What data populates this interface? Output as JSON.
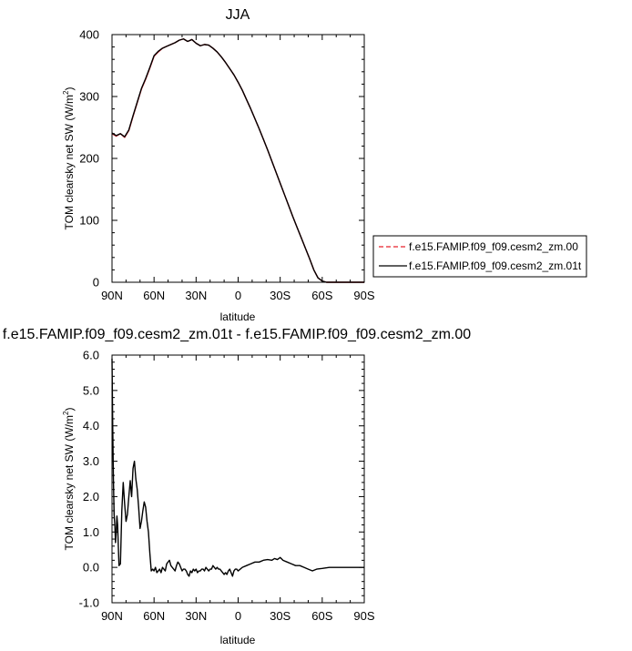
{
  "chart_data": [
    {
      "type": "line",
      "title": "JJA",
      "xlabel": "latitude",
      "ylabel": "TOM clearsky net SW (W/m",
      "ylabel_sup": "2",
      "ylabel_close": ")",
      "xlim": [
        90,
        -90
      ],
      "ylim": [
        0,
        400
      ],
      "x_ticks": [
        90,
        60,
        30,
        0,
        -30,
        -60,
        -90
      ],
      "x_tick_labels": [
        "90N",
        "60N",
        "30N",
        "0",
        "30S",
        "60S",
        "90S"
      ],
      "y_ticks": [
        0,
        100,
        200,
        300,
        400
      ],
      "y_tick_labels": [
        "0",
        "100",
        "200",
        "300",
        "400"
      ],
      "legend": {
        "placement": "right",
        "entries": [
          {
            "label": "f.e15.FAMIP.f09_f09.cesm2_zm.00",
            "color": "#e8202a",
            "dash": "dashed"
          },
          {
            "label": "f.e15.FAMIP.f09_f09.cesm2_zm.01t",
            "color": "#000000",
            "dash": "solid"
          }
        ]
      },
      "x": [
        90,
        87,
        84,
        81,
        78,
        75,
        72,
        69,
        66,
        63,
        60,
        57,
        54,
        51,
        48,
        45,
        42,
        39,
        36,
        33,
        30,
        27,
        24,
        21,
        18,
        15,
        12,
        9,
        6,
        3,
        0,
        -3,
        -6,
        -9,
        -12,
        -15,
        -18,
        -21,
        -24,
        -27,
        -30,
        -33,
        -36,
        -39,
        -42,
        -45,
        -48,
        -51,
        -54,
        -57,
        -60,
        -63,
        -66,
        -69,
        -72,
        -75,
        -78,
        -81,
        -84,
        -87,
        -90
      ],
      "series": [
        {
          "name": "f.e15.FAMIP.f09_f09.cesm2_zm.00",
          "color": "#e8202a",
          "values": [
            240,
            236,
            240,
            234,
            245,
            268,
            290,
            312,
            328,
            346,
            365,
            372,
            378,
            381,
            384,
            387,
            391,
            393,
            389,
            392,
            386,
            382,
            384,
            383,
            378,
            372,
            364,
            355,
            345,
            335,
            323,
            310,
            295,
            280,
            264,
            248,
            231,
            214,
            196,
            178,
            160,
            142,
            124,
            106,
            89,
            72,
            55,
            38,
            20,
            7,
            2,
            0,
            0,
            0,
            0,
            0,
            0,
            0,
            0,
            0,
            0
          ]
        },
        {
          "name": "f.e15.FAMIP.f09_f09.cesm2_zm.01t",
          "color": "#000000",
          "values": [
            241,
            237,
            240,
            235,
            246,
            269,
            291,
            313,
            329,
            347,
            366,
            373,
            378,
            381,
            384,
            387,
            391,
            393,
            389,
            392,
            386,
            382,
            384,
            383,
            378,
            372,
            364,
            355,
            345,
            335,
            323,
            310,
            295,
            280,
            264,
            248,
            231,
            214,
            196,
            178,
            160,
            142,
            124,
            106,
            89,
            72,
            55,
            38,
            20,
            7,
            2,
            0,
            0,
            0,
            0,
            0,
            0,
            0,
            0,
            0,
            0
          ]
        }
      ]
    },
    {
      "type": "line",
      "title": "f.e15.FAMIP.f09_f09.cesm2_zm.01t - f.e15.FAMIP.f09_f09.cesm2_zm.00",
      "xlabel": "latitude",
      "ylabel": "TOM clearsky net SW (W/m",
      "ylabel_sup": "2",
      "ylabel_close": ")",
      "xlim": [
        90,
        -90
      ],
      "ylim": [
        -1.0,
        6.0
      ],
      "x_ticks": [
        90,
        60,
        30,
        0,
        -30,
        -60,
        -90
      ],
      "x_tick_labels": [
        "90N",
        "60N",
        "30N",
        "0",
        "30S",
        "60S",
        "90S"
      ],
      "y_ticks": [
        -1.0,
        0.0,
        1.0,
        2.0,
        3.0,
        4.0,
        5.0,
        6.0
      ],
      "y_tick_labels": [
        "-1.0",
        "0.0",
        "1.0",
        "2.0",
        "3.0",
        "4.0",
        "5.0",
        "6.0"
      ],
      "series": [
        {
          "color": "#000000",
          "x": [
            90,
            89.5,
            89,
            88.5,
            88,
            87.5,
            87,
            86.5,
            86,
            85.5,
            85,
            84,
            83,
            82,
            81,
            80,
            79,
            78,
            77,
            76,
            75,
            74,
            73,
            72,
            71,
            70,
            69,
            68,
            67,
            66,
            65,
            64,
            63,
            62,
            61,
            60,
            59,
            58,
            57,
            56,
            55,
            54,
            53,
            52,
            51,
            50,
            49,
            48,
            47,
            46,
            45,
            44,
            43,
            42,
            41,
            40,
            39,
            38,
            37,
            36,
            35,
            34,
            33,
            32,
            31,
            30,
            29,
            28,
            27,
            26,
            25,
            24,
            23,
            22,
            21,
            20,
            19,
            18,
            17,
            16,
            15,
            14,
            13,
            12,
            11,
            10,
            9,
            8,
            7,
            6,
            5,
            4,
            3,
            2,
            1,
            0,
            -3,
            -6,
            -9,
            -12,
            -15,
            -18,
            -21,
            -24,
            -26,
            -28,
            -30,
            -32,
            -35,
            -38,
            -41,
            -44,
            -47,
            -50,
            -53,
            -56,
            -60,
            -65,
            -70,
            -75,
            -80,
            -85,
            -90
          ],
          "values": [
            5.9,
            4.0,
            2.5,
            1.5,
            1.2,
            0.7,
            1.0,
            1.45,
            1.2,
            0.6,
            0.05,
            0.1,
            1.6,
            2.4,
            1.8,
            1.3,
            1.5,
            2.0,
            2.45,
            2.0,
            2.8,
            3.0,
            2.5,
            2.2,
            1.7,
            1.1,
            1.3,
            1.6,
            1.85,
            1.7,
            1.3,
            1.0,
            0.4,
            -0.1,
            -0.05,
            -0.1,
            0.0,
            -0.15,
            -0.1,
            -0.05,
            -0.15,
            0.0,
            -0.05,
            -0.1,
            0.1,
            0.15,
            0.2,
            0.05,
            0.0,
            -0.05,
            -0.1,
            0.05,
            0.15,
            0.1,
            0.0,
            -0.1,
            -0.05,
            -0.05,
            -0.1,
            -0.2,
            -0.25,
            -0.1,
            -0.15,
            -0.05,
            -0.1,
            -0.05,
            -0.15,
            -0.1,
            -0.1,
            -0.05,
            -0.05,
            -0.1,
            0.0,
            -0.05,
            -0.1,
            -0.05,
            -0.05,
            0.05,
            0.0,
            -0.05,
            0.0,
            -0.05,
            -0.05,
            -0.1,
            -0.15,
            -0.2,
            -0.15,
            -0.2,
            -0.1,
            -0.05,
            -0.15,
            -0.25,
            -0.1,
            -0.05,
            -0.05,
            -0.1,
            0.0,
            0.05,
            0.1,
            0.15,
            0.15,
            0.2,
            0.22,
            0.2,
            0.25,
            0.22,
            0.28,
            0.2,
            0.15,
            0.1,
            0.05,
            0.05,
            0.0,
            -0.05,
            -0.1,
            -0.05,
            -0.03,
            0.0,
            0.0,
            0.0,
            0.0,
            0.0,
            0.0
          ]
        }
      ]
    }
  ]
}
